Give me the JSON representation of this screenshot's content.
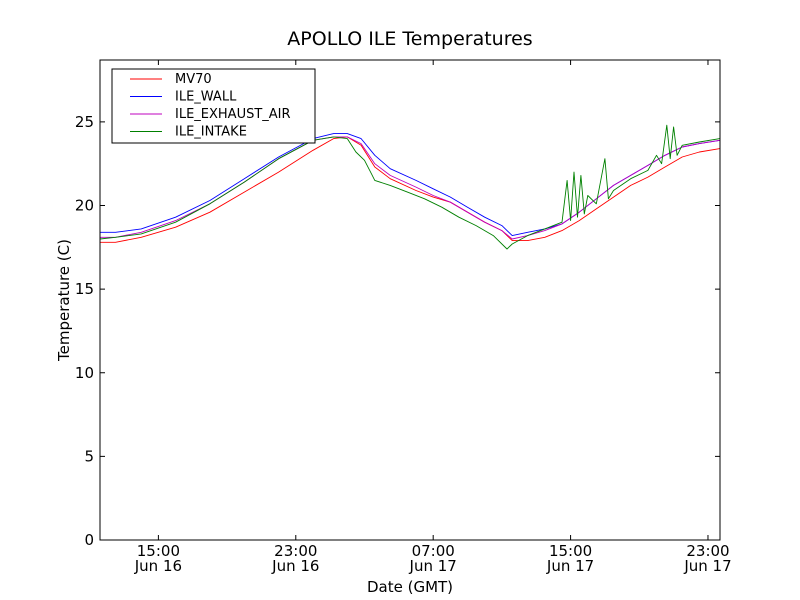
{
  "chart_data": {
    "type": "line",
    "title": "APOLLO ILE Temperatures",
    "xlabel": "Date (GMT)",
    "ylabel": "Temperature (C)",
    "x_unit": "hours since Jun 16 00:00 GMT",
    "xlim": [
      11.6,
      47.7
    ],
    "ylim": [
      0,
      28.7
    ],
    "yticks": [
      0,
      5,
      10,
      15,
      20,
      25
    ],
    "xticks": [
      {
        "x": 15,
        "line1": "15:00",
        "line2": "Jun 16"
      },
      {
        "x": 23,
        "line1": "23:00",
        "line2": "Jun 16"
      },
      {
        "x": 31,
        "line1": "07:00",
        "line2": "Jun 17"
      },
      {
        "x": 39,
        "line1": "15:00",
        "line2": "Jun 17"
      },
      {
        "x": 47,
        "line1": "23:00",
        "line2": "Jun 17"
      }
    ],
    "legend_location": "top-left",
    "series": [
      {
        "name": "MV70",
        "color": "#ff0000",
        "points": [
          [
            11.6,
            17.8
          ],
          [
            12.5,
            17.8
          ],
          [
            14,
            18.1
          ],
          [
            16,
            18.7
          ],
          [
            18,
            19.6
          ],
          [
            20,
            20.8
          ],
          [
            22,
            22.0
          ],
          [
            24,
            23.3
          ],
          [
            25.2,
            24.0
          ],
          [
            26,
            24.1
          ],
          [
            26.8,
            23.6
          ],
          [
            27.6,
            22.3
          ],
          [
            28.5,
            21.6
          ],
          [
            30,
            20.9
          ],
          [
            31,
            20.5
          ],
          [
            32,
            20.2
          ],
          [
            33,
            19.6
          ],
          [
            34,
            19.0
          ],
          [
            35,
            18.5
          ],
          [
            35.6,
            17.9
          ],
          [
            36.5,
            17.9
          ],
          [
            37.5,
            18.1
          ],
          [
            38.5,
            18.5
          ],
          [
            39.5,
            19.1
          ],
          [
            40.5,
            19.8
          ],
          [
            41.5,
            20.5
          ],
          [
            42.5,
            21.2
          ],
          [
            43.5,
            21.7
          ],
          [
            44.5,
            22.3
          ],
          [
            45.5,
            22.9
          ],
          [
            46.5,
            23.2
          ],
          [
            47.7,
            23.4
          ]
        ]
      },
      {
        "name": "ILE_WALL",
        "color": "#0000ff",
        "points": [
          [
            11.6,
            18.4
          ],
          [
            12.5,
            18.4
          ],
          [
            14,
            18.6
          ],
          [
            16,
            19.3
          ],
          [
            18,
            20.3
          ],
          [
            20,
            21.6
          ],
          [
            22,
            22.9
          ],
          [
            24,
            24.0
          ],
          [
            25.2,
            24.3
          ],
          [
            26,
            24.3
          ],
          [
            26.8,
            24.0
          ],
          [
            27.6,
            23.0
          ],
          [
            28.5,
            22.2
          ],
          [
            30,
            21.5
          ],
          [
            31,
            21.0
          ],
          [
            32,
            20.5
          ],
          [
            33,
            19.9
          ],
          [
            34,
            19.3
          ],
          [
            35,
            18.8
          ],
          [
            35.6,
            18.2
          ],
          [
            36.5,
            18.4
          ],
          [
            37.5,
            18.6
          ],
          [
            38.5,
            18.9
          ],
          [
            39.5,
            19.6
          ],
          [
            40.5,
            20.4
          ],
          [
            41.5,
            21.2
          ],
          [
            42.5,
            21.8
          ],
          [
            43.5,
            22.4
          ],
          [
            44.5,
            23.0
          ],
          [
            45.5,
            23.5
          ],
          [
            46.5,
            23.7
          ],
          [
            47.7,
            23.9
          ]
        ]
      },
      {
        "name": "ILE_EXHAUST_AIR",
        "color": "#bf00bf",
        "points": [
          [
            11.6,
            18.1
          ],
          [
            12.5,
            18.1
          ],
          [
            14,
            18.4
          ],
          [
            16,
            19.1
          ],
          [
            18,
            20.1
          ],
          [
            20,
            21.4
          ],
          [
            22,
            22.8
          ],
          [
            24,
            23.9
          ],
          [
            25.2,
            24.1
          ],
          [
            26,
            24.1
          ],
          [
            26.8,
            23.7
          ],
          [
            27.6,
            22.5
          ],
          [
            28.5,
            21.8
          ],
          [
            30,
            21.1
          ],
          [
            31,
            20.6
          ],
          [
            32,
            20.2
          ],
          [
            33,
            19.6
          ],
          [
            34,
            19.0
          ],
          [
            35,
            18.5
          ],
          [
            35.6,
            18.0
          ],
          [
            36.5,
            18.2
          ],
          [
            37.5,
            18.5
          ],
          [
            38.5,
            18.9
          ],
          [
            39.5,
            19.6
          ],
          [
            40.5,
            20.4
          ],
          [
            41.5,
            21.2
          ],
          [
            42.5,
            21.8
          ],
          [
            43.5,
            22.4
          ],
          [
            44.5,
            23.0
          ],
          [
            45.5,
            23.5
          ],
          [
            46.5,
            23.7
          ],
          [
            47.7,
            23.9
          ]
        ]
      },
      {
        "name": "ILE_INTAKE",
        "color": "#008000",
        "points": [
          [
            11.6,
            18.0
          ],
          [
            12.5,
            18.1
          ],
          [
            14,
            18.3
          ],
          [
            16,
            19.0
          ],
          [
            18,
            20.1
          ],
          [
            20,
            21.4
          ],
          [
            22,
            22.8
          ],
          [
            24,
            23.9
          ],
          [
            25.2,
            24.1
          ],
          [
            26,
            24.0
          ],
          [
            26.5,
            23.2
          ],
          [
            27,
            22.7
          ],
          [
            27.4,
            21.9
          ],
          [
            27.6,
            21.5
          ],
          [
            28.5,
            21.2
          ],
          [
            29.5,
            20.8
          ],
          [
            30.5,
            20.4
          ],
          [
            31.5,
            19.9
          ],
          [
            32.5,
            19.3
          ],
          [
            33.5,
            18.8
          ],
          [
            34.5,
            18.2
          ],
          [
            35.3,
            17.4
          ],
          [
            35.6,
            17.7
          ],
          [
            36.5,
            18.2
          ],
          [
            37.5,
            18.6
          ],
          [
            38.5,
            19.0
          ],
          [
            38.8,
            21.5
          ],
          [
            39.0,
            19.1
          ],
          [
            39.2,
            22.0
          ],
          [
            39.4,
            19.3
          ],
          [
            39.6,
            21.8
          ],
          [
            39.8,
            19.5
          ],
          [
            40.0,
            20.6
          ],
          [
            40.5,
            20.1
          ],
          [
            41.0,
            22.8
          ],
          [
            41.2,
            20.4
          ],
          [
            41.5,
            20.9
          ],
          [
            42.5,
            21.6
          ],
          [
            43.5,
            22.1
          ],
          [
            44.0,
            23.0
          ],
          [
            44.3,
            22.5
          ],
          [
            44.6,
            24.8
          ],
          [
            44.8,
            22.8
          ],
          [
            45.0,
            24.7
          ],
          [
            45.2,
            23.0
          ],
          [
            45.5,
            23.6
          ],
          [
            46.5,
            23.8
          ],
          [
            47.7,
            24.0
          ]
        ]
      }
    ]
  }
}
